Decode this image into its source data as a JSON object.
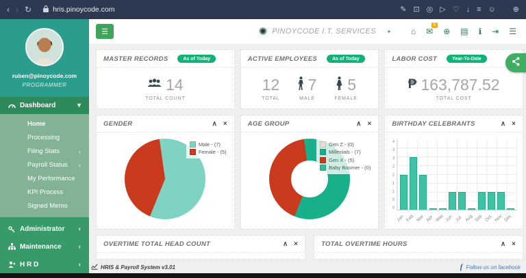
{
  "browser": {
    "url": "hris.pinoycode.com",
    "back_glyph": "‹",
    "forward_glyph": "›",
    "reload_glyph": "↻",
    "right_icons": [
      {
        "name": "edit",
        "glyph": "✎"
      },
      {
        "name": "camera",
        "glyph": "⊡"
      },
      {
        "name": "record",
        "glyph": "◎"
      },
      {
        "name": "send",
        "glyph": "▷"
      },
      {
        "name": "heart",
        "glyph": "♡"
      },
      {
        "name": "download",
        "glyph": "↓"
      },
      {
        "name": "reading-list",
        "glyph": "≡"
      },
      {
        "name": "profile",
        "glyph": "☺"
      },
      {
        "name": "panel",
        "glyph": "⊕"
      }
    ]
  },
  "topbar": {
    "company": "PINOYCODE I.T. SERVICES",
    "brand_glyph": "✺",
    "mail_badge": "0",
    "icons": [
      {
        "name": "home",
        "glyph": "⌂"
      },
      {
        "name": "mail",
        "glyph": "✉"
      },
      {
        "name": "globe",
        "glyph": "⊕"
      },
      {
        "name": "book",
        "glyph": "▤"
      },
      {
        "name": "info",
        "glyph": "ℹ"
      },
      {
        "name": "logout",
        "glyph": "⇥"
      },
      {
        "name": "list",
        "glyph": "☰"
      }
    ]
  },
  "sidebar": {
    "email": "ruben@pinoycode.com",
    "role": "PROGRAMMER",
    "dashboard_label": "Dashboard",
    "submenu": [
      {
        "label": "Home"
      },
      {
        "label": "Processing"
      },
      {
        "label": "Filing Stats",
        "chevron": true
      },
      {
        "label": "Payroll Status",
        "chevron": true
      },
      {
        "label": "My Performance"
      },
      {
        "label": "KPI Process"
      },
      {
        "label": "Signed Memo"
      }
    ],
    "administrator_label": "Administrator",
    "maintenance_label": "Maintenance",
    "hrd_label": "H R D"
  },
  "cards": {
    "master": {
      "title": "MASTER RECORDS",
      "badge": "As of Today",
      "value": "14",
      "label": "TOTAL COUNT"
    },
    "active": {
      "title": "ACTIVE EMPLOYEES",
      "badge": "As of Today",
      "total": {
        "value": "12",
        "label": "TOTAL"
      },
      "male": {
        "value": "7",
        "label": "MALE"
      },
      "female": {
        "value": "5",
        "label": "FEMALE"
      }
    },
    "labor": {
      "title": "LABOR COST",
      "badge": "Year-To-Date",
      "currency": "₱",
      "value": "163,787.52",
      "label": "TOTAL COST"
    }
  },
  "charts": {
    "gender_title": "GENDER",
    "age_title": "AGE GROUP",
    "birthday_title": "BIRTHDAY CELEBRANTS"
  },
  "bottom_panels": {
    "head_count_title": "OVERTIME TOTAL HEAD COUNT",
    "hours_title": "TOTAL OVERTIME HOURS"
  },
  "footer": {
    "app_version": "HRIS & Payroll System v3.01",
    "facebook_text": "Follow us on facebook"
  },
  "glyphs": {
    "caret_down": "▾",
    "chevron_left": "‹",
    "collapse": "∧",
    "close": "×",
    "burger": "☰"
  },
  "accent_colors": {
    "sidebar_teal": "#2b9d8d",
    "sidebar_green": "#379a68",
    "submenu_green": "#83b295",
    "badge_green": "#12b277",
    "header_icon_green": "#2e7d4f",
    "mail_badge_orange": "#f5a623"
  },
  "chart_data": [
    {
      "type": "pie",
      "title": "GENDER",
      "labels": [
        "Male",
        "Female"
      ],
      "values": [
        7,
        5
      ],
      "colors": [
        "#7fd3c2",
        "#ca3a1d"
      ],
      "legend": [
        "Male - (7)",
        "Female - (5)"
      ],
      "legend_position": "top-right",
      "start_angle_deg": -8
    },
    {
      "type": "pie",
      "subtype": "donut",
      "title": "AGE GROUP",
      "labels": [
        "Gen Z",
        "Millenials",
        "Gen X",
        "Baby Boomer"
      ],
      "values": [
        0,
        7,
        5,
        0
      ],
      "colors": [
        "#e9dcd6",
        "#17b08a",
        "#ca3a1d",
        "#2bbf98"
      ],
      "legend": [
        "Gen Z - (0)",
        "Millenials - (7)",
        "Gen X - (5)",
        "Baby Boomer - (0)"
      ],
      "legend_position": "top-right",
      "start_angle_deg": -8
    },
    {
      "type": "bar",
      "title": "BIRTHDAY CELEBRANTS",
      "categories": [
        "Jan",
        "Feb",
        "Mar",
        "Apr",
        "May",
        "Jun",
        "Jul",
        "Aug",
        "Sep",
        "Oct",
        "Nov",
        "Dec"
      ],
      "values": [
        2,
        3,
        2,
        0,
        0,
        1,
        1,
        0,
        1,
        1,
        1,
        0
      ],
      "xlabel": "",
      "ylabel": "",
      "ylim": [
        0,
        4
      ],
      "ytick_step": 0.5,
      "bar_color": "#3fc1a4",
      "grid": true,
      "legend_position": "none"
    }
  ]
}
